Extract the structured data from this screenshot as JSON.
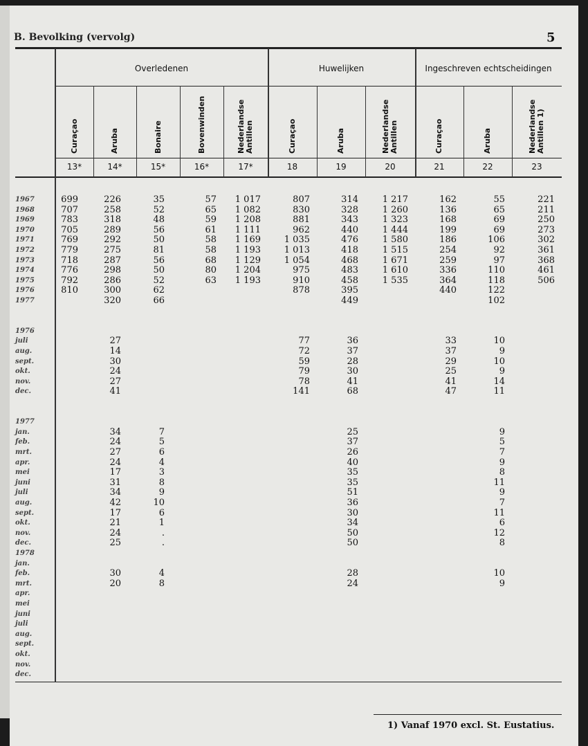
{
  "header": {
    "running_title": "B. Bevolking (vervolg)",
    "page_number": "5"
  },
  "groups": [
    {
      "label": "Overledenen"
    },
    {
      "label": "Huwelijken"
    },
    {
      "label": "Ingeschreven echtscheidingen"
    }
  ],
  "columns": [
    {
      "label": "Curaçao",
      "num": "13*"
    },
    {
      "label": "Aruba",
      "num": "14*"
    },
    {
      "label": "Bonaire",
      "num": "15*"
    },
    {
      "label": "Bovenwinden",
      "num": "16*"
    },
    {
      "label": "Nederlandse\nAntillen",
      "num": "17*"
    },
    {
      "label": "Curaçao",
      "num": "18"
    },
    {
      "label": "Aruba",
      "num": "19"
    },
    {
      "label": "Nederlandse\nAntillen",
      "num": "20"
    },
    {
      "label": "Curaçao",
      "num": "21"
    },
    {
      "label": "Aruba",
      "num": "22"
    },
    {
      "label": "Nederlandse\nAntillen 1)",
      "num": "23"
    }
  ],
  "rows": [
    {
      "label": "1967",
      "v": [
        "699",
        "226",
        "35",
        "57",
        "1 017",
        "807",
        "314",
        "1 217",
        "162",
        "55",
        "221"
      ]
    },
    {
      "label": "1968",
      "v": [
        "707",
        "258",
        "52",
        "65",
        "1 082",
        "830",
        "328",
        "1 260",
        "136",
        "65",
        "211"
      ]
    },
    {
      "label": "1969",
      "v": [
        "783",
        "318",
        "48",
        "59",
        "1 208",
        "881",
        "343",
        "1 323",
        "168",
        "69",
        "250"
      ]
    },
    {
      "label": "1970",
      "v": [
        "705",
        "289",
        "56",
        "61",
        "1 111",
        "962",
        "440",
        "1 444",
        "199",
        "69",
        "273"
      ]
    },
    {
      "label": "1971",
      "v": [
        "769",
        "292",
        "50",
        "58",
        "1 169",
        "1 035",
        "476",
        "1 580",
        "186",
        "106",
        "302"
      ]
    },
    {
      "label": "1972",
      "v": [
        "779",
        "275",
        "81",
        "58",
        "1 193",
        "1 013",
        "418",
        "1 515",
        "254",
        "92",
        "361"
      ]
    },
    {
      "label": "1973",
      "v": [
        "718",
        "287",
        "56",
        "68",
        "1 129",
        "1 054",
        "468",
        "1 671",
        "259",
        "97",
        "368"
      ]
    },
    {
      "label": "1974",
      "v": [
        "776",
        "298",
        "50",
        "80",
        "1 204",
        "975",
        "483",
        "1 610",
        "336",
        "110",
        "461"
      ]
    },
    {
      "label": "1975",
      "v": [
        "792",
        "286",
        "52",
        "63",
        "1 193",
        "910",
        "458",
        "1 535",
        "364",
        "118",
        "506"
      ]
    },
    {
      "label": "1976",
      "v": [
        "810",
        "300",
        "62",
        "",
        "",
        "878",
        "395",
        "",
        "440",
        "122",
        ""
      ]
    },
    {
      "label": "1977",
      "v": [
        "",
        "320",
        "66",
        "",
        "",
        "",
        "449",
        "",
        "",
        "102",
        ""
      ]
    },
    {
      "label": "",
      "v": []
    },
    {
      "label": "",
      "v": []
    },
    {
      "label": "1976",
      "v": []
    },
    {
      "label": "juli",
      "v": [
        "",
        "27",
        "",
        "",
        "",
        "77",
        "36",
        "",
        "33",
        "10",
        ""
      ]
    },
    {
      "label": "aug.",
      "v": [
        "",
        "14",
        "",
        "",
        "",
        "72",
        "37",
        "",
        "37",
        "9",
        ""
      ]
    },
    {
      "label": "sept.",
      "v": [
        "",
        "30",
        "",
        "",
        "",
        "59",
        "28",
        "",
        "29",
        "10",
        ""
      ]
    },
    {
      "label": "okt.",
      "v": [
        "",
        "24",
        "",
        "",
        "",
        "79",
        "30",
        "",
        "25",
        "9",
        ""
      ]
    },
    {
      "label": "nov.",
      "v": [
        "",
        "27",
        "",
        "",
        "",
        "78",
        "41",
        "",
        "41",
        "14",
        ""
      ]
    },
    {
      "label": "dec.",
      "v": [
        "",
        "41",
        "",
        "",
        "",
        "141",
        "68",
        "",
        "47",
        "11",
        ""
      ]
    },
    {
      "label": "",
      "v": []
    },
    {
      "label": "",
      "v": []
    },
    {
      "label": "1977",
      "v": []
    },
    {
      "label": "jan.",
      "v": [
        "",
        "34",
        "7",
        "",
        "",
        "",
        "25",
        "",
        "",
        "9",
        ""
      ]
    },
    {
      "label": "feb.",
      "v": [
        "",
        "24",
        "5",
        "",
        "",
        "",
        "37",
        "",
        "",
        "5",
        ""
      ]
    },
    {
      "label": "mrt.",
      "v": [
        "",
        "27",
        "6",
        "",
        "",
        "",
        "26",
        "",
        "",
        "7",
        ""
      ]
    },
    {
      "label": "apr.",
      "v": [
        "",
        "24",
        "4",
        "",
        "",
        "",
        "40",
        "",
        "",
        "9",
        ""
      ]
    },
    {
      "label": "mei",
      "v": [
        "",
        "17",
        "3",
        "",
        "",
        "",
        "35",
        "",
        "",
        "8",
        ""
      ]
    },
    {
      "label": "juni",
      "v": [
        "",
        "31",
        "8",
        "",
        "",
        "",
        "35",
        "",
        "",
        "11",
        ""
      ]
    },
    {
      "label": "juli",
      "v": [
        "",
        "34",
        "9",
        "",
        "",
        "",
        "51",
        "",
        "",
        "9",
        ""
      ]
    },
    {
      "label": "aug.",
      "v": [
        "",
        "42",
        "10",
        "",
        "",
        "",
        "36",
        "",
        "",
        "7",
        ""
      ]
    },
    {
      "label": "sept.",
      "v": [
        "",
        "17",
        "6",
        "",
        "",
        "",
        "30",
        "",
        "",
        "11",
        ""
      ]
    },
    {
      "label": "okt.",
      "v": [
        "",
        "21",
        "1",
        "",
        "",
        "",
        "34",
        "",
        "",
        "6",
        ""
      ]
    },
    {
      "label": "nov.",
      "v": [
        "",
        "24",
        ".",
        "",
        "",
        "",
        "50",
        "",
        "",
        "12",
        ""
      ]
    },
    {
      "label": "dec.",
      "v": [
        "",
        "25",
        ".",
        "",
        "",
        "",
        "50",
        "",
        "",
        "8",
        ""
      ]
    },
    {
      "label": "1978",
      "v": []
    },
    {
      "label": "jan.",
      "v": []
    },
    {
      "label": "feb.",
      "v": [
        "",
        "30",
        "4",
        "",
        "",
        "",
        "28",
        "",
        "",
        "10",
        ""
      ]
    },
    {
      "label": "mrt.",
      "v": [
        "",
        "20",
        "8",
        "",
        "",
        "",
        "24",
        "",
        "",
        "9",
        ""
      ]
    },
    {
      "label": "apr.",
      "v": []
    },
    {
      "label": "mei",
      "v": []
    },
    {
      "label": "juni",
      "v": []
    },
    {
      "label": "juli",
      "v": []
    },
    {
      "label": "aug.",
      "v": []
    },
    {
      "label": "sept.",
      "v": []
    },
    {
      "label": "okt.",
      "v": []
    },
    {
      "label": "nov.",
      "v": []
    },
    {
      "label": "dec.",
      "v": []
    }
  ],
  "footnote": "1) Vanaf 1970 excl. St. Eustatius."
}
